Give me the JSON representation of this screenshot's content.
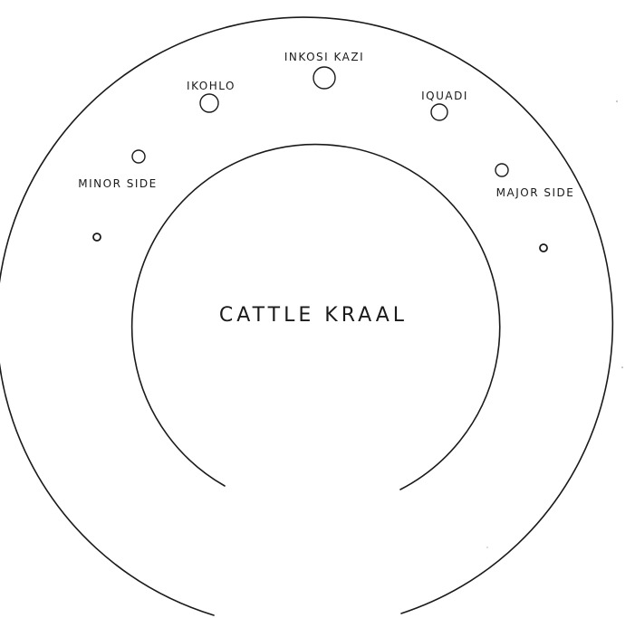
{
  "kraal": {
    "center_label": "CATTLE KRAAL"
  },
  "huts": {
    "inkosi_kazi": "INKOSI KAZI",
    "ikohlo": "IKOHLO",
    "iquadi": "IQUADI",
    "minor_side": "MINOR SIDE",
    "major_side": "MAJOR SIDE"
  },
  "colors": {
    "ink": "#1a1a1a",
    "paper": "#ffffff"
  }
}
